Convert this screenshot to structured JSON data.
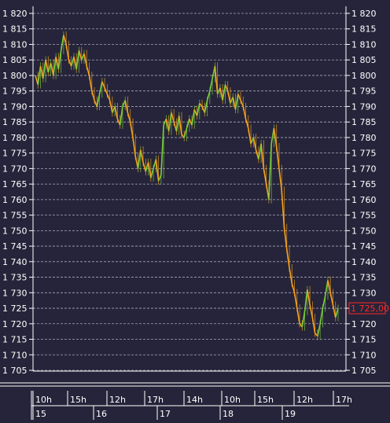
{
  "chart_data": {
    "type": "candlestick",
    "y_ticks": [
      "1 820",
      "1 815",
      "1 810",
      "1 805",
      "1 800",
      "1 795",
      "1 790",
      "1 785",
      "1 780",
      "1 775",
      "1 770",
      "1 765",
      "1 760",
      "1 755",
      "1 750",
      "1 745",
      "1 740",
      "1 735",
      "1 730",
      "1 725",
      "1 720",
      "1 715",
      "1 710",
      "1 705"
    ],
    "ylim": [
      1705,
      1820
    ],
    "grid": true,
    "last_price": 1725.0,
    "last_price_label": "1 725,00",
    "time_labels": [
      "10h",
      "15h",
      "12h",
      "17h",
      "14h",
      "10h",
      "15h",
      "12h",
      "17h"
    ],
    "day_labels": [
      "15",
      "16",
      "17",
      "18",
      "19"
    ],
    "series_close": [
      1800,
      1797,
      1803,
      1799,
      1805,
      1801,
      1804,
      1800,
      1806,
      1802,
      1808,
      1813,
      1810,
      1805,
      1803,
      1806,
      1802,
      1808,
      1805,
      1807,
      1803,
      1800,
      1795,
      1792,
      1790,
      1794,
      1798,
      1796,
      1794,
      1792,
      1788,
      1790,
      1786,
      1784,
      1790,
      1792,
      1788,
      1785,
      1780,
      1774,
      1770,
      1776,
      1772,
      1769,
      1772,
      1767,
      1770,
      1773,
      1766,
      1768,
      1784,
      1786,
      1782,
      1788,
      1785,
      1782,
      1787,
      1781,
      1780,
      1783,
      1786,
      1784,
      1789,
      1787,
      1791,
      1790,
      1788,
      1792,
      1795,
      1799,
      1803,
      1794,
      1796,
      1792,
      1797,
      1795,
      1791,
      1793,
      1789,
      1794,
      1792,
      1790,
      1786,
      1783,
      1778,
      1780,
      1776,
      1773,
      1778,
      1770,
      1765,
      1760,
      1778,
      1783,
      1777,
      1770,
      1763,
      1751,
      1744,
      1738,
      1733,
      1730,
      1725,
      1720,
      1719,
      1724,
      1731,
      1726,
      1722,
      1717,
      1716,
      1720,
      1725,
      1729,
      1734,
      1730,
      1726,
      1722,
      1725
    ]
  },
  "colors": {
    "background": "#26243a",
    "grid": "#a8a8b8",
    "up": "#7acd3c",
    "down": "#f6a21a",
    "price_tag": "#ff2a2a"
  }
}
